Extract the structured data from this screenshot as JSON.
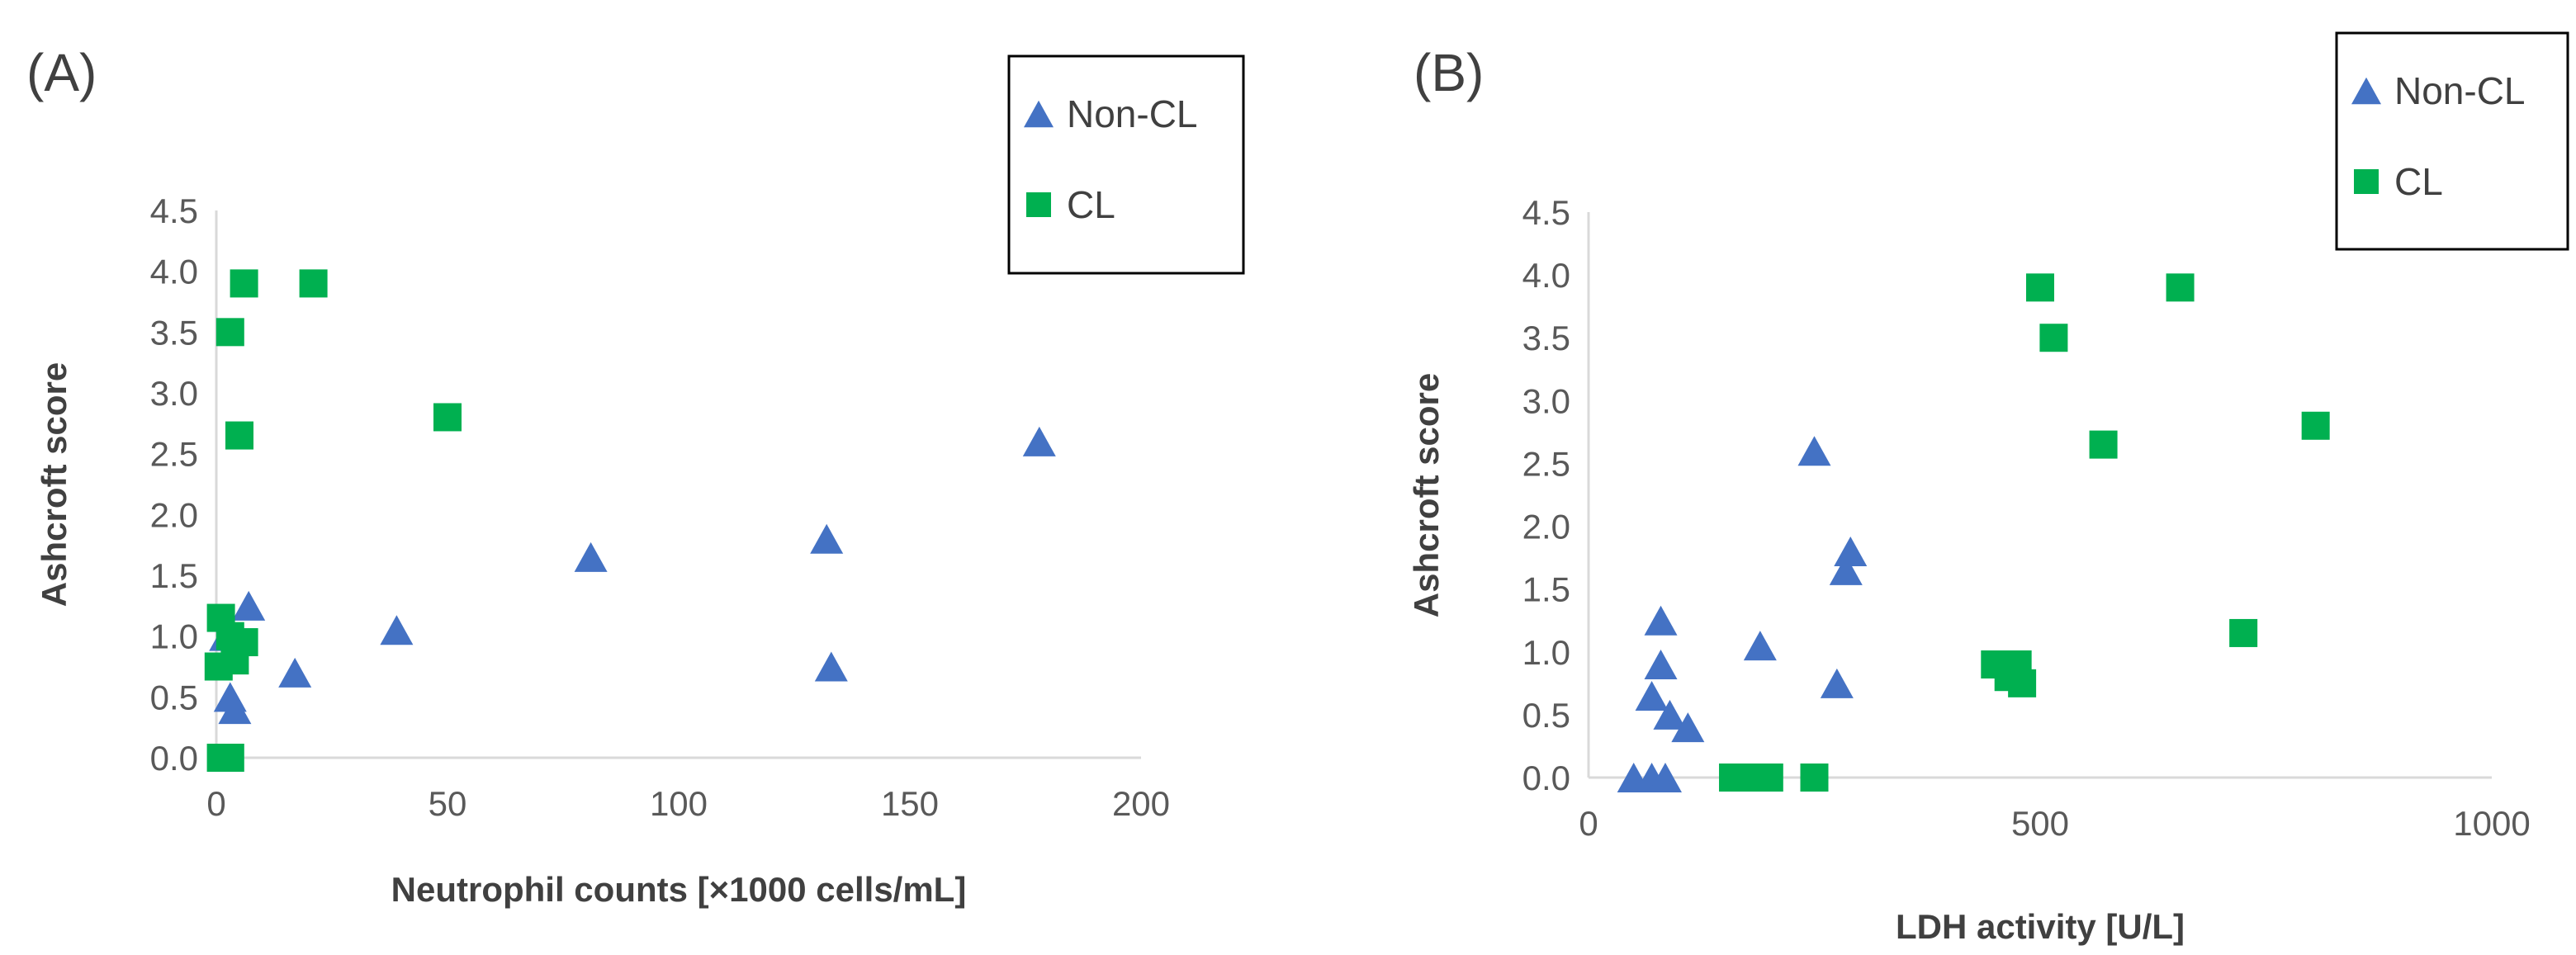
{
  "colors": {
    "non_cl": "#4472C4",
    "cl": "#00B050",
    "axis": "#D9D9D9",
    "text": "#595959"
  },
  "chart_data": [
    {
      "type": "scatter",
      "panel_label": "(A)",
      "xlabel": "Neutrophil counts [×1000 cells/mL]",
      "ylabel": "Ashcroft score",
      "xlim": [
        0,
        200
      ],
      "ylim": [
        0,
        4.5
      ],
      "xticks": [
        "0",
        "50",
        "100",
        "150",
        "200"
      ],
      "yticks": [
        "0.0",
        "0.5",
        "1.0",
        "1.5",
        "2.0",
        "2.5",
        "3.0",
        "3.5",
        "4.0",
        "4.5"
      ],
      "grid": false,
      "legend": "top-right",
      "series": [
        {
          "name": "Non-CL",
          "marker": "triangle",
          "color": "#4472C4",
          "points": [
            [
              178,
              2.6
            ],
            [
              132,
              1.8
            ],
            [
              81,
              1.65
            ],
            [
              39,
              1.05
            ],
            [
              7,
              1.25
            ],
            [
              17,
              0.7
            ],
            [
              133,
              0.75
            ],
            [
              3,
              0.5
            ],
            [
              4,
              0.4
            ],
            [
              2,
              1.0
            ]
          ]
        },
        {
          "name": "CL",
          "marker": "square",
          "color": "#00B050",
          "points": [
            [
              6,
              3.9
            ],
            [
              21,
              3.9
            ],
            [
              3,
              3.5
            ],
            [
              5,
              2.65
            ],
            [
              50,
              2.8
            ],
            [
              1,
              1.15
            ],
            [
              3,
              1.0
            ],
            [
              6,
              0.95
            ],
            [
              4,
              0.8
            ],
            [
              0.5,
              0.75
            ],
            [
              1,
              0.0
            ],
            [
              3,
              0.0
            ],
            [
              2,
              0.0
            ]
          ]
        }
      ]
    },
    {
      "type": "scatter",
      "panel_label": "(B)",
      "xlabel": "LDH activity [U/L]",
      "ylabel": "Ashcroft score",
      "xlim": [
        0,
        1000
      ],
      "ylim": [
        0,
        4.5
      ],
      "xticks": [
        "0",
        "500",
        "1000"
      ],
      "yticks": [
        "0.0",
        "0.5",
        "1.0",
        "1.5",
        "2.0",
        "2.5",
        "3.0",
        "3.5",
        "4.0",
        "4.5"
      ],
      "grid": false,
      "legend": "top-right",
      "series": [
        {
          "name": "Non-CL",
          "marker": "triangle",
          "color": "#4472C4",
          "points": [
            [
              250,
              2.6
            ],
            [
              290,
              1.8
            ],
            [
              285,
              1.65
            ],
            [
              80,
              1.25
            ],
            [
              190,
              1.05
            ],
            [
              80,
              0.9
            ],
            [
              275,
              0.75
            ],
            [
              70,
              0.65
            ],
            [
              90,
              0.5
            ],
            [
              110,
              0.4
            ],
            [
              50,
              0.0
            ],
            [
              70,
              0.0
            ],
            [
              85,
              0.0
            ]
          ]
        },
        {
          "name": "CL",
          "marker": "square",
          "color": "#00B050",
          "points": [
            [
              500,
              3.9
            ],
            [
              655,
              3.9
            ],
            [
              515,
              3.5
            ],
            [
              570,
              2.65
            ],
            [
              805,
              2.8
            ],
            [
              725,
              1.15
            ],
            [
              450,
              0.9
            ],
            [
              475,
              0.9
            ],
            [
              465,
              0.8
            ],
            [
              480,
              0.75
            ],
            [
              160,
              0.0
            ],
            [
              180,
              0.0
            ],
            [
              200,
              0.0
            ],
            [
              250,
              0.0
            ]
          ]
        }
      ]
    }
  ]
}
